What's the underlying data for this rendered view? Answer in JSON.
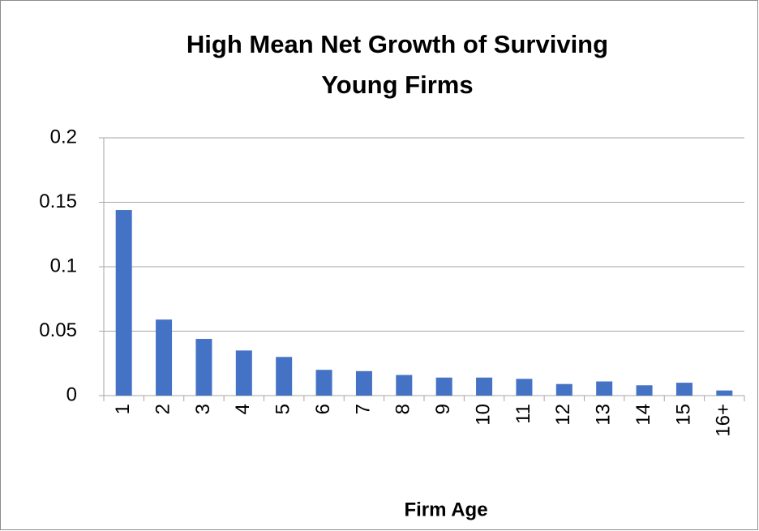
{
  "chart_data": {
    "type": "bar",
    "title": "High Mean Net Growth of Surviving Young Firms",
    "x_label": "Firm Age",
    "categories": [
      "1",
      "2",
      "3",
      "4",
      "5",
      "6",
      "7",
      "8",
      "9",
      "10",
      "11",
      "12",
      "13",
      "14",
      "15",
      "16+"
    ],
    "values": [
      0.144,
      0.059,
      0.044,
      0.035,
      0.03,
      0.02,
      0.019,
      0.016,
      0.014,
      0.014,
      0.013,
      0.009,
      0.011,
      0.008,
      0.01,
      0.004
    ],
    "color": "#4472c4",
    "ylim": [
      0,
      0.2
    ],
    "yticks": [
      0,
      0.05,
      0.1,
      0.15,
      0.2
    ],
    "grid": true
  }
}
